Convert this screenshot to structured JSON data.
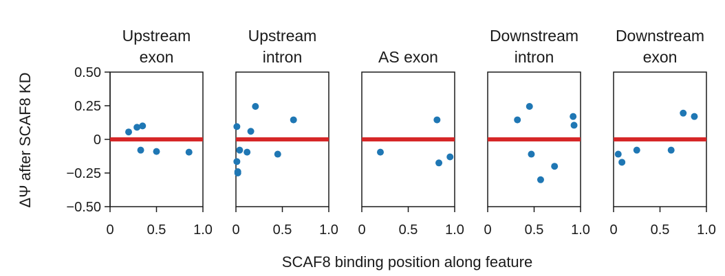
{
  "chart_data": {
    "type": "scatter",
    "ylabel": "ΔΨ after SCAF8 KD",
    "xlabel": "SCAF8 binding position along feature",
    "ylim": [
      -0.5,
      0.5
    ],
    "xlim": [
      0,
      1
    ],
    "y_ticks": [
      "0.50",
      "0.25",
      "0",
      "−0.25",
      "−0.50"
    ],
    "y_tick_values": [
      0.5,
      0.25,
      0,
      -0.25,
      -0.5
    ],
    "x_ticks": [
      "0",
      "0.5",
      "1.0"
    ],
    "x_tick_values": [
      0,
      0.5,
      1.0
    ],
    "reference_line": {
      "y": 0,
      "color": "#d62728"
    },
    "point_color": "#1f77b4",
    "panels": [
      {
        "title": [
          "Upstream",
          "exon"
        ],
        "points": [
          [
            0.2,
            0.055
          ],
          [
            0.29,
            0.09
          ],
          [
            0.35,
            0.1
          ],
          [
            0.33,
            -0.08
          ],
          [
            0.5,
            -0.09
          ],
          [
            0.85,
            -0.095
          ]
        ]
      },
      {
        "title": [
          "Upstream",
          "intron"
        ],
        "points": [
          [
            0.01,
            0.095
          ],
          [
            0.21,
            0.245
          ],
          [
            0.16,
            0.06
          ],
          [
            0.62,
            0.145
          ],
          [
            0.04,
            -0.08
          ],
          [
            0.12,
            -0.095
          ],
          [
            0.45,
            -0.11
          ],
          [
            0.01,
            -0.165
          ],
          [
            0.02,
            -0.24
          ],
          [
            0.02,
            -0.25
          ]
        ]
      },
      {
        "title": [
          "AS exon"
        ],
        "points": [
          [
            0.81,
            0.145
          ],
          [
            0.2,
            -0.095
          ],
          [
            0.83,
            -0.175
          ],
          [
            0.95,
            -0.13
          ]
        ]
      },
      {
        "title": [
          "Downstream",
          "intron"
        ],
        "points": [
          [
            0.32,
            0.145
          ],
          [
            0.45,
            0.245
          ],
          [
            0.92,
            0.17
          ],
          [
            0.93,
            0.105
          ],
          [
            0.47,
            -0.11
          ],
          [
            0.72,
            -0.2
          ],
          [
            0.57,
            -0.3
          ]
        ]
      },
      {
        "title": [
          "Downstream",
          "exon"
        ],
        "points": [
          [
            0.75,
            0.195
          ],
          [
            0.87,
            0.17
          ],
          [
            0.25,
            -0.08
          ],
          [
            0.62,
            -0.08
          ],
          [
            0.05,
            -0.11
          ],
          [
            0.09,
            -0.17
          ]
        ]
      }
    ]
  }
}
